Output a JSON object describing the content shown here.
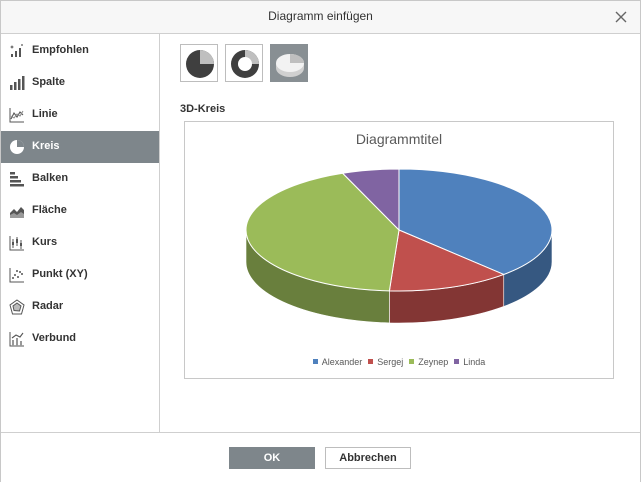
{
  "dialog": {
    "title": "Diagramm einfügen",
    "close_icon": "close-icon"
  },
  "sidebar": {
    "items": [
      {
        "label": "Empfohlen",
        "icon": "recommended-chart-icon",
        "active": false
      },
      {
        "label": "Spalte",
        "icon": "column-chart-icon",
        "active": false
      },
      {
        "label": "Linie",
        "icon": "line-chart-icon",
        "active": false
      },
      {
        "label": "Kreis",
        "icon": "pie-chart-icon",
        "active": true
      },
      {
        "label": "Balken",
        "icon": "bar-chart-icon",
        "active": false
      },
      {
        "label": "Fläche",
        "icon": "area-chart-icon",
        "active": false
      },
      {
        "label": "Kurs",
        "icon": "stock-chart-icon",
        "active": false
      },
      {
        "label": "Punkt (XY)",
        "icon": "scatter-chart-icon",
        "active": false
      },
      {
        "label": "Radar",
        "icon": "radar-chart-icon",
        "active": false
      },
      {
        "label": "Verbund",
        "icon": "combo-chart-icon",
        "active": false
      }
    ]
  },
  "subtypes": [
    {
      "icon": "pie-subtype-icon",
      "active": false
    },
    {
      "icon": "doughnut-subtype-icon",
      "active": false
    },
    {
      "icon": "3d-pie-subtype-icon",
      "active": true
    }
  ],
  "subtype_label": "3D-Kreis",
  "chart_data": {
    "type": "pie",
    "variant": "3d",
    "title": "Diagrammtitel",
    "categories": [
      "Alexander",
      "Sergej",
      "Zeynep",
      "Linda"
    ],
    "values": [
      38,
      13,
      43,
      6
    ],
    "colors": [
      "#4f81bd",
      "#c0504d",
      "#9bbb59",
      "#8064a2"
    ],
    "legend_position": "bottom"
  },
  "footer": {
    "ok_label": "OK",
    "cancel_label": "Abbrechen"
  },
  "colors": {
    "accent": "#7e868b"
  }
}
